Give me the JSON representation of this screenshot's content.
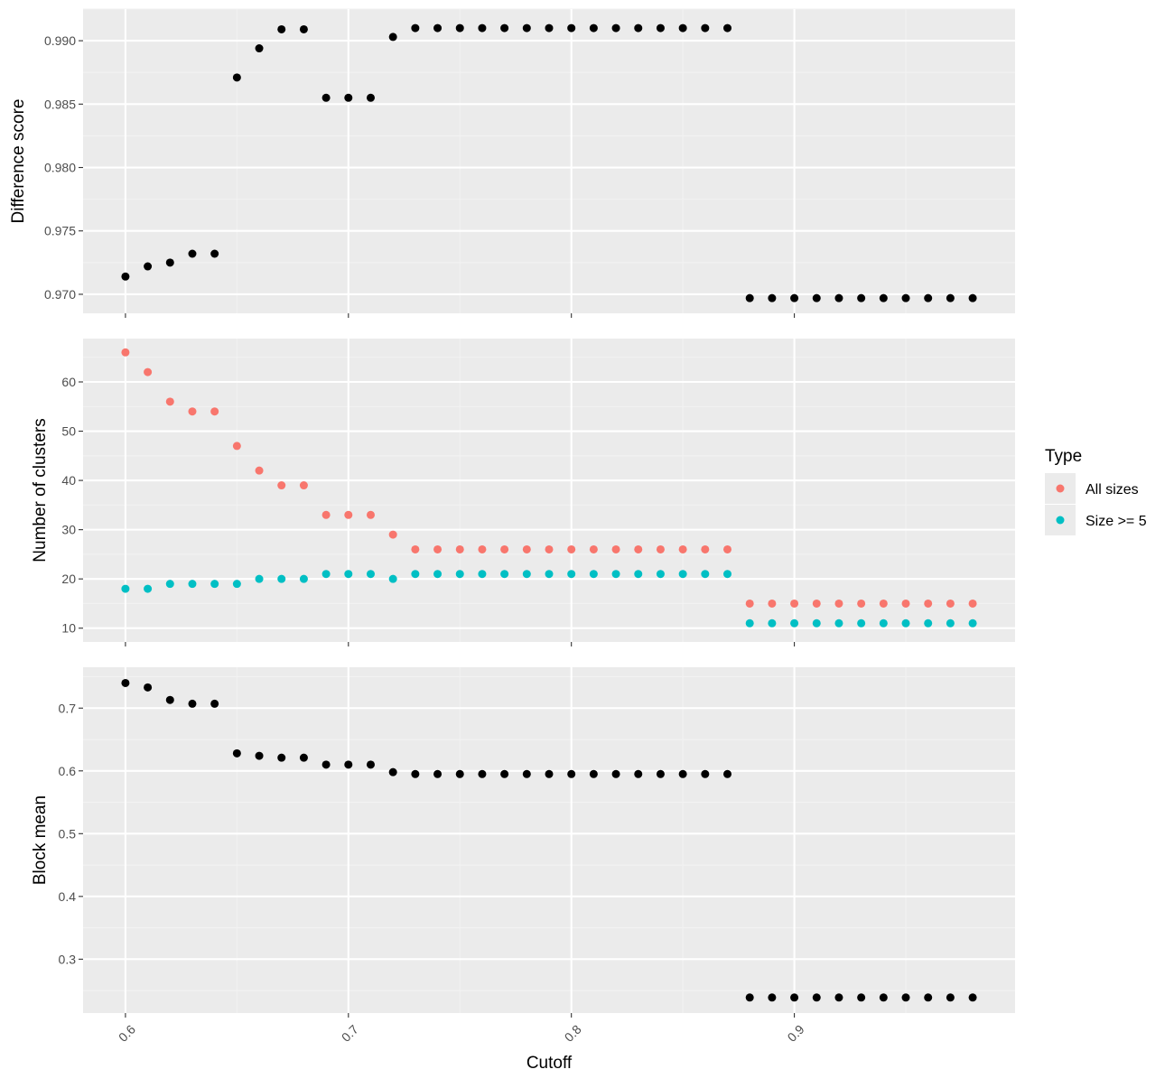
{
  "chart_data": [
    {
      "type": "scatter",
      "panel": "top",
      "ylabel": "Difference score",
      "ylim": [
        0.9685,
        0.9925
      ],
      "yticks": [
        0.97,
        0.975,
        0.98,
        0.985,
        0.99
      ],
      "ytick_labels": [
        "0.970",
        "0.975",
        "0.980",
        "0.985",
        "0.990"
      ],
      "series": [
        {
          "color": "#000000",
          "x": [
            0.6,
            0.61,
            0.62,
            0.63,
            0.64,
            0.65,
            0.66,
            0.67,
            0.68,
            0.69,
            0.7,
            0.71,
            0.72,
            0.73,
            0.74,
            0.75,
            0.76,
            0.77,
            0.78,
            0.79,
            0.8,
            0.81,
            0.82,
            0.83,
            0.84,
            0.85,
            0.86,
            0.87,
            0.88,
            0.89,
            0.9,
            0.91,
            0.92,
            0.93,
            0.94,
            0.95,
            0.96,
            0.97,
            0.98
          ],
          "y": [
            0.9714,
            0.9722,
            0.9725,
            0.9732,
            0.9732,
            0.9871,
            0.9894,
            0.9909,
            0.9909,
            0.9855,
            0.9855,
            0.9855,
            0.9903,
            0.991,
            0.991,
            0.991,
            0.991,
            0.991,
            0.991,
            0.991,
            0.991,
            0.991,
            0.991,
            0.991,
            0.991,
            0.991,
            0.991,
            0.991,
            0.9697,
            0.9697,
            0.9697,
            0.9697,
            0.9697,
            0.9697,
            0.9697,
            0.9697,
            0.9697,
            0.9697,
            0.9697
          ]
        }
      ]
    },
    {
      "type": "scatter",
      "panel": "middle",
      "ylabel": "Number of clusters",
      "ylim": [
        7.2,
        68.8
      ],
      "yticks": [
        10,
        20,
        30,
        40,
        50,
        60
      ],
      "ytick_labels": [
        "10",
        "20",
        "30",
        "40",
        "50",
        "60"
      ],
      "series": [
        {
          "name": "All sizes",
          "color": "#F8766D",
          "x": [
            0.6,
            0.61,
            0.62,
            0.63,
            0.64,
            0.65,
            0.66,
            0.67,
            0.68,
            0.69,
            0.7,
            0.71,
            0.72,
            0.73,
            0.74,
            0.75,
            0.76,
            0.77,
            0.78,
            0.79,
            0.8,
            0.81,
            0.82,
            0.83,
            0.84,
            0.85,
            0.86,
            0.87,
            0.88,
            0.89,
            0.9,
            0.91,
            0.92,
            0.93,
            0.94,
            0.95,
            0.96,
            0.97,
            0.98
          ],
          "y": [
            66,
            62,
            56,
            54,
            54,
            47,
            42,
            39,
            39,
            33,
            33,
            33,
            29,
            26,
            26,
            26,
            26,
            26,
            26,
            26,
            26,
            26,
            26,
            26,
            26,
            26,
            26,
            26,
            15,
            15,
            15,
            15,
            15,
            15,
            15,
            15,
            15,
            15,
            15
          ]
        },
        {
          "name": "Size >= 5",
          "color": "#00BFC4",
          "x": [
            0.6,
            0.61,
            0.62,
            0.63,
            0.64,
            0.65,
            0.66,
            0.67,
            0.68,
            0.69,
            0.7,
            0.71,
            0.72,
            0.73,
            0.74,
            0.75,
            0.76,
            0.77,
            0.78,
            0.79,
            0.8,
            0.81,
            0.82,
            0.83,
            0.84,
            0.85,
            0.86,
            0.87,
            0.88,
            0.89,
            0.9,
            0.91,
            0.92,
            0.93,
            0.94,
            0.95,
            0.96,
            0.97,
            0.98
          ],
          "y": [
            18,
            18,
            19,
            19,
            19,
            19,
            20,
            20,
            20,
            21,
            21,
            21,
            20,
            21,
            21,
            21,
            21,
            21,
            21,
            21,
            21,
            21,
            21,
            21,
            21,
            21,
            21,
            21,
            11,
            11,
            11,
            11,
            11,
            11,
            11,
            11,
            11,
            11,
            11
          ]
        }
      ]
    },
    {
      "type": "scatter",
      "panel": "bottom",
      "ylabel": "Block mean",
      "xlabel": "Cutoff",
      "ylim": [
        0.2142,
        0.7651
      ],
      "yticks": [
        0.3,
        0.4,
        0.5,
        0.6,
        0.7
      ],
      "ytick_labels": [
        "0.3",
        "0.4",
        "0.5",
        "0.6",
        "0.7"
      ],
      "series": [
        {
          "color": "#000000",
          "x": [
            0.6,
            0.61,
            0.62,
            0.63,
            0.64,
            0.65,
            0.66,
            0.67,
            0.68,
            0.69,
            0.7,
            0.71,
            0.72,
            0.73,
            0.74,
            0.75,
            0.76,
            0.77,
            0.78,
            0.79,
            0.8,
            0.81,
            0.82,
            0.83,
            0.84,
            0.85,
            0.86,
            0.87,
            0.88,
            0.89,
            0.9,
            0.91,
            0.92,
            0.93,
            0.94,
            0.95,
            0.96,
            0.97,
            0.98
          ],
          "y": [
            0.74,
            0.733,
            0.713,
            0.707,
            0.707,
            0.628,
            0.624,
            0.621,
            0.621,
            0.61,
            0.61,
            0.61,
            0.598,
            0.595,
            0.595,
            0.595,
            0.595,
            0.595,
            0.595,
            0.595,
            0.595,
            0.595,
            0.595,
            0.595,
            0.595,
            0.595,
            0.595,
            0.595,
            0.239,
            0.239,
            0.239,
            0.239,
            0.239,
            0.239,
            0.239,
            0.239,
            0.239,
            0.239,
            0.239
          ]
        }
      ]
    }
  ],
  "x_axis": {
    "label": "Cutoff",
    "xlim": [
      0.581,
      0.999
    ],
    "ticks": [
      0.6,
      0.7,
      0.8,
      0.9
    ],
    "tick_labels": [
      "0.6",
      "0.7",
      "0.8",
      "0.9"
    ],
    "tick_label_rotation_deg": -45
  },
  "legend": {
    "title": "Type",
    "position": "right",
    "entries": [
      {
        "label": "All sizes",
        "color": "#F8766D"
      },
      {
        "label": "Size >= 5",
        "color": "#00BFC4"
      }
    ]
  },
  "style": {
    "panel_background": "#EBEBEB",
    "grid_major": "#FFFFFF",
    "grid_minor": "#F2F2F2",
    "tick_color": "#333333",
    "legend_key_background": "#EBEBEB"
  }
}
